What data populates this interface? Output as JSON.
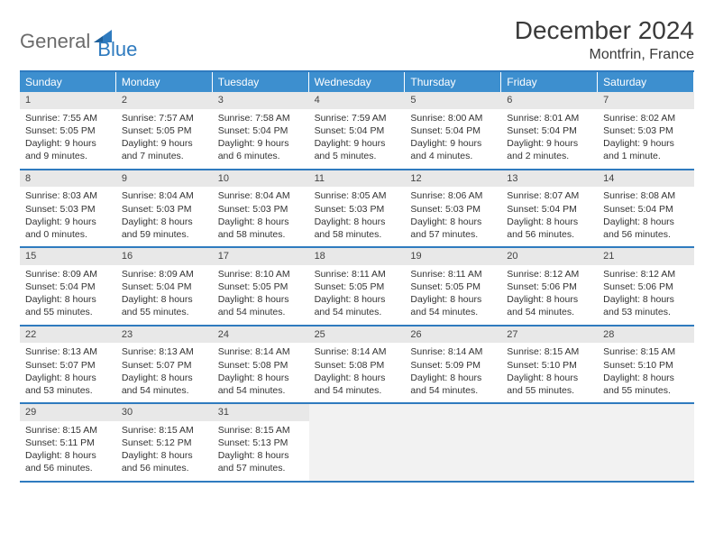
{
  "logo": {
    "part1": "General",
    "part2": "Blue"
  },
  "title": "December 2024",
  "location": "Montfrin, France",
  "colors": {
    "header_bg": "#3d8fcf",
    "border": "#2f7bbf",
    "daynum_bg": "#e8e8e8",
    "empty_bg": "#f2f2f2",
    "text": "#333333",
    "logo_gray": "#6b6b6b",
    "logo_blue": "#2f7bbf"
  },
  "weekdays": [
    "Sunday",
    "Monday",
    "Tuesday",
    "Wednesday",
    "Thursday",
    "Friday",
    "Saturday"
  ],
  "days": [
    {
      "n": "1",
      "sunrise": "Sunrise: 7:55 AM",
      "sunset": "Sunset: 5:05 PM",
      "daylight": "Daylight: 9 hours and 9 minutes."
    },
    {
      "n": "2",
      "sunrise": "Sunrise: 7:57 AM",
      "sunset": "Sunset: 5:05 PM",
      "daylight": "Daylight: 9 hours and 7 minutes."
    },
    {
      "n": "3",
      "sunrise": "Sunrise: 7:58 AM",
      "sunset": "Sunset: 5:04 PM",
      "daylight": "Daylight: 9 hours and 6 minutes."
    },
    {
      "n": "4",
      "sunrise": "Sunrise: 7:59 AM",
      "sunset": "Sunset: 5:04 PM",
      "daylight": "Daylight: 9 hours and 5 minutes."
    },
    {
      "n": "5",
      "sunrise": "Sunrise: 8:00 AM",
      "sunset": "Sunset: 5:04 PM",
      "daylight": "Daylight: 9 hours and 4 minutes."
    },
    {
      "n": "6",
      "sunrise": "Sunrise: 8:01 AM",
      "sunset": "Sunset: 5:04 PM",
      "daylight": "Daylight: 9 hours and 2 minutes."
    },
    {
      "n": "7",
      "sunrise": "Sunrise: 8:02 AM",
      "sunset": "Sunset: 5:03 PM",
      "daylight": "Daylight: 9 hours and 1 minute."
    },
    {
      "n": "8",
      "sunrise": "Sunrise: 8:03 AM",
      "sunset": "Sunset: 5:03 PM",
      "daylight": "Daylight: 9 hours and 0 minutes."
    },
    {
      "n": "9",
      "sunrise": "Sunrise: 8:04 AM",
      "sunset": "Sunset: 5:03 PM",
      "daylight": "Daylight: 8 hours and 59 minutes."
    },
    {
      "n": "10",
      "sunrise": "Sunrise: 8:04 AM",
      "sunset": "Sunset: 5:03 PM",
      "daylight": "Daylight: 8 hours and 58 minutes."
    },
    {
      "n": "11",
      "sunrise": "Sunrise: 8:05 AM",
      "sunset": "Sunset: 5:03 PM",
      "daylight": "Daylight: 8 hours and 58 minutes."
    },
    {
      "n": "12",
      "sunrise": "Sunrise: 8:06 AM",
      "sunset": "Sunset: 5:03 PM",
      "daylight": "Daylight: 8 hours and 57 minutes."
    },
    {
      "n": "13",
      "sunrise": "Sunrise: 8:07 AM",
      "sunset": "Sunset: 5:04 PM",
      "daylight": "Daylight: 8 hours and 56 minutes."
    },
    {
      "n": "14",
      "sunrise": "Sunrise: 8:08 AM",
      "sunset": "Sunset: 5:04 PM",
      "daylight": "Daylight: 8 hours and 56 minutes."
    },
    {
      "n": "15",
      "sunrise": "Sunrise: 8:09 AM",
      "sunset": "Sunset: 5:04 PM",
      "daylight": "Daylight: 8 hours and 55 minutes."
    },
    {
      "n": "16",
      "sunrise": "Sunrise: 8:09 AM",
      "sunset": "Sunset: 5:04 PM",
      "daylight": "Daylight: 8 hours and 55 minutes."
    },
    {
      "n": "17",
      "sunrise": "Sunrise: 8:10 AM",
      "sunset": "Sunset: 5:05 PM",
      "daylight": "Daylight: 8 hours and 54 minutes."
    },
    {
      "n": "18",
      "sunrise": "Sunrise: 8:11 AM",
      "sunset": "Sunset: 5:05 PM",
      "daylight": "Daylight: 8 hours and 54 minutes."
    },
    {
      "n": "19",
      "sunrise": "Sunrise: 8:11 AM",
      "sunset": "Sunset: 5:05 PM",
      "daylight": "Daylight: 8 hours and 54 minutes."
    },
    {
      "n": "20",
      "sunrise": "Sunrise: 8:12 AM",
      "sunset": "Sunset: 5:06 PM",
      "daylight": "Daylight: 8 hours and 54 minutes."
    },
    {
      "n": "21",
      "sunrise": "Sunrise: 8:12 AM",
      "sunset": "Sunset: 5:06 PM",
      "daylight": "Daylight: 8 hours and 53 minutes."
    },
    {
      "n": "22",
      "sunrise": "Sunrise: 8:13 AM",
      "sunset": "Sunset: 5:07 PM",
      "daylight": "Daylight: 8 hours and 53 minutes."
    },
    {
      "n": "23",
      "sunrise": "Sunrise: 8:13 AM",
      "sunset": "Sunset: 5:07 PM",
      "daylight": "Daylight: 8 hours and 54 minutes."
    },
    {
      "n": "24",
      "sunrise": "Sunrise: 8:14 AM",
      "sunset": "Sunset: 5:08 PM",
      "daylight": "Daylight: 8 hours and 54 minutes."
    },
    {
      "n": "25",
      "sunrise": "Sunrise: 8:14 AM",
      "sunset": "Sunset: 5:08 PM",
      "daylight": "Daylight: 8 hours and 54 minutes."
    },
    {
      "n": "26",
      "sunrise": "Sunrise: 8:14 AM",
      "sunset": "Sunset: 5:09 PM",
      "daylight": "Daylight: 8 hours and 54 minutes."
    },
    {
      "n": "27",
      "sunrise": "Sunrise: 8:15 AM",
      "sunset": "Sunset: 5:10 PM",
      "daylight": "Daylight: 8 hours and 55 minutes."
    },
    {
      "n": "28",
      "sunrise": "Sunrise: 8:15 AM",
      "sunset": "Sunset: 5:10 PM",
      "daylight": "Daylight: 8 hours and 55 minutes."
    },
    {
      "n": "29",
      "sunrise": "Sunrise: 8:15 AM",
      "sunset": "Sunset: 5:11 PM",
      "daylight": "Daylight: 8 hours and 56 minutes."
    },
    {
      "n": "30",
      "sunrise": "Sunrise: 8:15 AM",
      "sunset": "Sunset: 5:12 PM",
      "daylight": "Daylight: 8 hours and 56 minutes."
    },
    {
      "n": "31",
      "sunrise": "Sunrise: 8:15 AM",
      "sunset": "Sunset: 5:13 PM",
      "daylight": "Daylight: 8 hours and 57 minutes."
    }
  ]
}
